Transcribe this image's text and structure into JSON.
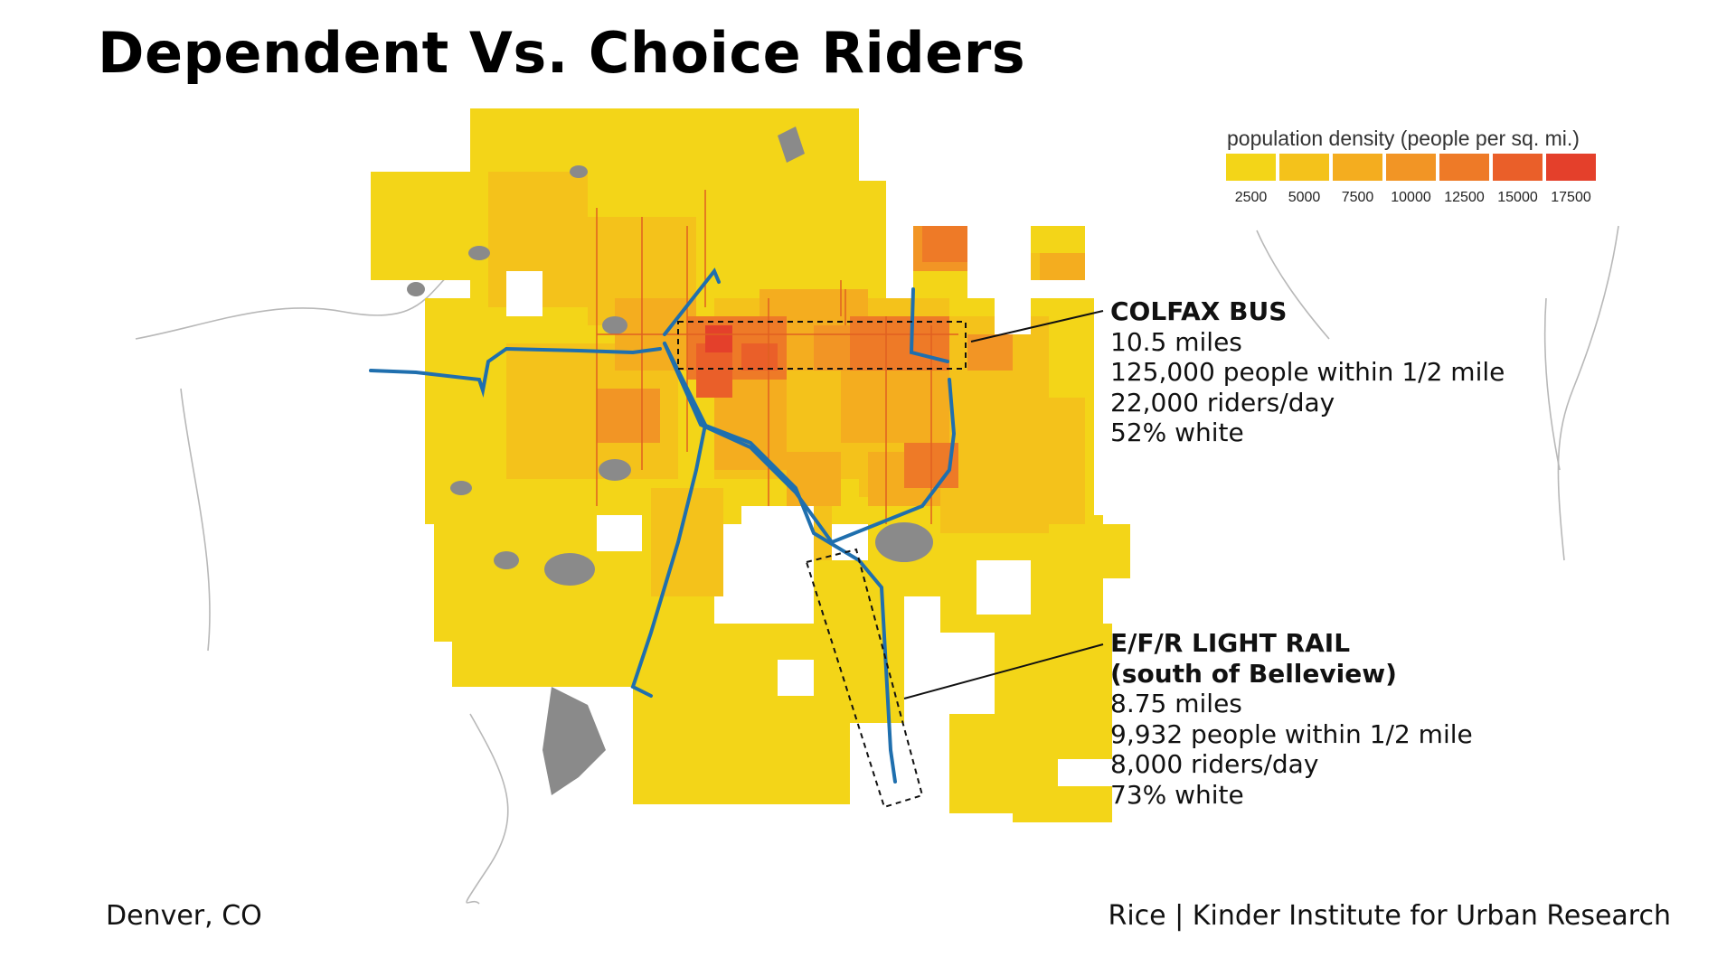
{
  "title": "Dependent Vs. Choice Riders",
  "legend": {
    "title": "population density (people per sq. mi.)",
    "ticks": [
      "2500",
      "5000",
      "7500",
      "10000",
      "12500",
      "15000",
      "17500"
    ],
    "colors": [
      "#f3d518",
      "#f4c21b",
      "#f4ad1f",
      "#f29525",
      "#ee7a27",
      "#ea5f29",
      "#e4402b"
    ]
  },
  "callouts": {
    "colfax": {
      "heading": "COLFAX BUS",
      "lines": [
        "10.5 miles",
        "125,000 people within 1/2 mile",
        "22,000 riders/day",
        "52% white"
      ]
    },
    "rail": {
      "heading": "E/F/R LIGHT RAIL",
      "subheading": "(south of Belleview)",
      "lines": [
        "8.75 miles",
        "9,932 people within 1/2 mile",
        "8,000 riders/day",
        "73% white"
      ]
    }
  },
  "footer": {
    "location": "Denver, CO",
    "credit": "Rice | Kinder Institute for Urban Research"
  },
  "map_colors": {
    "lowest_density": "#f3d518",
    "highest_density": "#e4402b",
    "transit_line": "#1f6fae",
    "water": "#8a8a8a"
  }
}
